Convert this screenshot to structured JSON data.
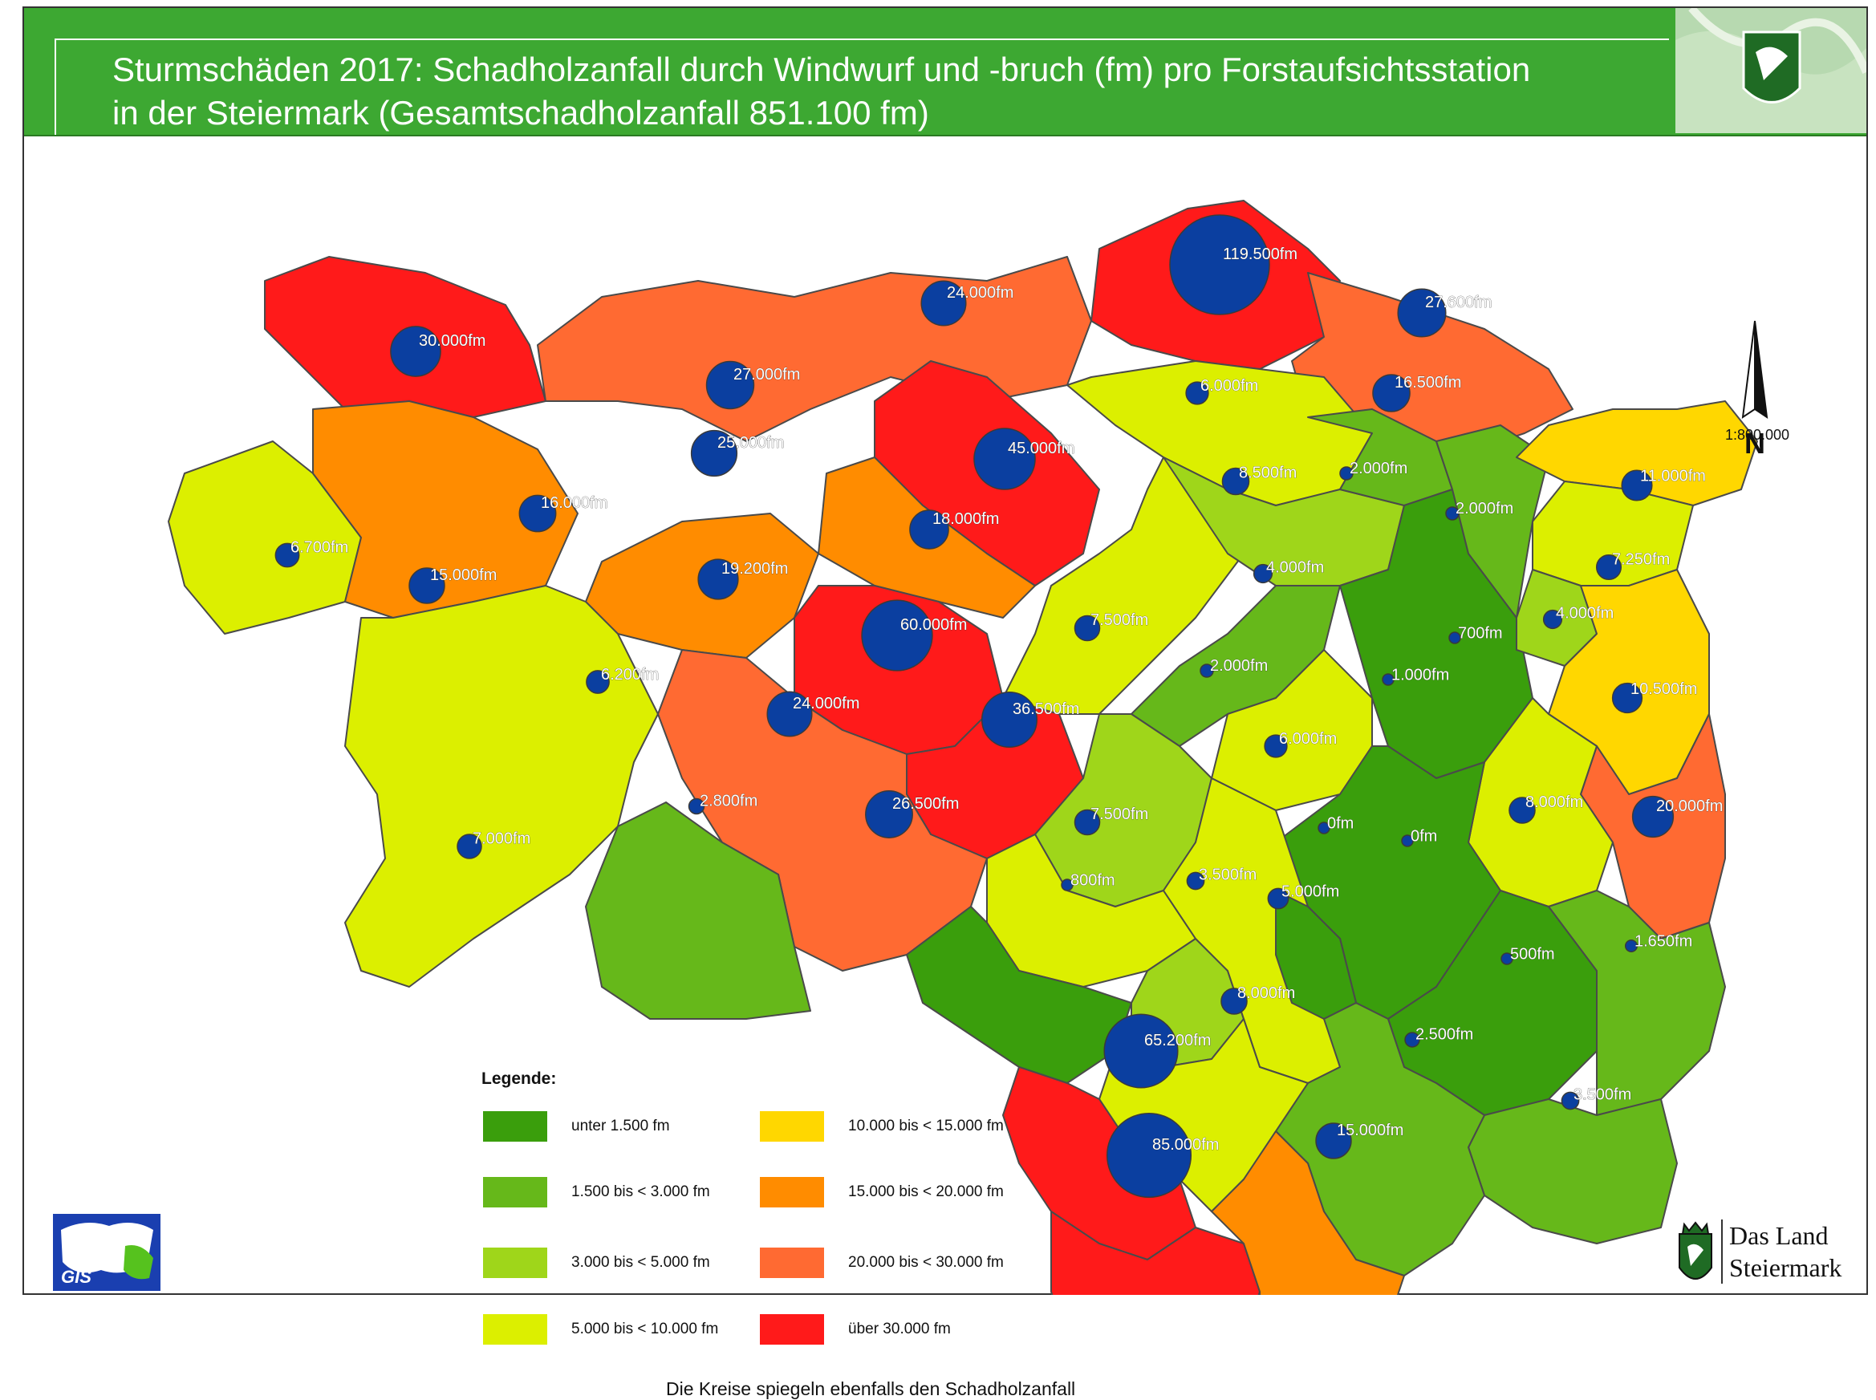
{
  "header": {
    "title_line1": "Sturmschäden 2017: Schadholzanfall durch Windwurf und -bruch (fm) pro Forstaufsichtsstation",
    "title_line2": "in der Steiermark (Gesamtschadholzanfall 851.100 fm)"
  },
  "north_arrow": {
    "letter": "N"
  },
  "scale": "1:800.000",
  "legend": {
    "title": "Legende:",
    "items": [
      {
        "label": "unter  1.500 fm",
        "color": "#3a9e0c"
      },
      {
        "label": "1.500 bis <  3.000 fm",
        "color": "#66b81a"
      },
      {
        "label": "3.000 bis <  5.000 fm",
        "color": "#9fd61a"
      },
      {
        "label": "5.000 bis < 10.000 fm",
        "color": "#dcef00"
      },
      {
        "label": "10.000 bis < 15.000 fm",
        "color": "#ffd700"
      },
      {
        "label": "15.000 bis < 20.000 fm",
        "color": "#ff8c00"
      },
      {
        "label": "20.000 bis < 30.000 fm",
        "color": "#ff6a32"
      },
      {
        "label": "über 30.000 fm",
        "color": "#ff1a1a"
      }
    ]
  },
  "circle_color": "#0b3fa0",
  "stations": [
    {
      "label": "30.000fm",
      "value": 30000
    },
    {
      "label": "24.000fm",
      "value": 24000
    },
    {
      "label": "119.500fm",
      "value": 119500
    },
    {
      "label": "27.600fm",
      "value": 27600
    },
    {
      "label": "27.000fm",
      "value": 27000
    },
    {
      "label": "25.000fm",
      "value": 25000
    },
    {
      "label": "45.000fm",
      "value": 45000
    },
    {
      "label": "6.000fm",
      "value": 6000
    },
    {
      "label": "16.500fm",
      "value": 16500
    },
    {
      "label": "16.000fm",
      "value": 16000
    },
    {
      "label": "8.500fm",
      "value": 8500
    },
    {
      "label": "2.000fm",
      "value": 2000
    },
    {
      "label": "11.000fm",
      "value": 11000
    },
    {
      "label": "6.700fm",
      "value": 6700
    },
    {
      "label": "18.000fm",
      "value": 18000
    },
    {
      "label": "2.000fm",
      "value": 2000
    },
    {
      "label": "15.000fm",
      "value": 15000
    },
    {
      "label": "19.200fm",
      "value": 19200
    },
    {
      "label": "4.000fm",
      "value": 4000
    },
    {
      "label": "7.250fm",
      "value": 7250
    },
    {
      "label": "7.500fm",
      "value": 7500
    },
    {
      "label": "60.000fm",
      "value": 60000
    },
    {
      "label": "4.000fm",
      "value": 4000
    },
    {
      "label": "700fm",
      "value": 700
    },
    {
      "label": "6.200fm",
      "value": 6200
    },
    {
      "label": "2.000fm",
      "value": 2000
    },
    {
      "label": "1.000fm",
      "value": 1000
    },
    {
      "label": "24.000fm",
      "value": 24000
    },
    {
      "label": "36.500fm",
      "value": 36500
    },
    {
      "label": "10.500fm",
      "value": 10500
    },
    {
      "label": "6.000fm",
      "value": 6000
    },
    {
      "label": "2.800fm",
      "value": 2800
    },
    {
      "label": "26.500fm",
      "value": 26500
    },
    {
      "label": "7.500fm",
      "value": 7500
    },
    {
      "label": "0fm",
      "value": 0
    },
    {
      "label": "0fm",
      "value": 0
    },
    {
      "label": "8.000fm",
      "value": 8000
    },
    {
      "label": "20.000fm",
      "value": 20000
    },
    {
      "label": "7.000fm",
      "value": 7000
    },
    {
      "label": "3.500fm",
      "value": 3500
    },
    {
      "label": "800fm",
      "value": 800
    },
    {
      "label": "5.000fm",
      "value": 5000
    },
    {
      "label": "500fm",
      "value": 500
    },
    {
      "label": "1.650fm",
      "value": 1650
    },
    {
      "label": "8.000fm",
      "value": 8000
    },
    {
      "label": "65.200fm",
      "value": 65200
    },
    {
      "label": "2.500fm",
      "value": 2500
    },
    {
      "label": "3.500fm",
      "value": 3500
    },
    {
      "label": "15.000fm",
      "value": 15000
    },
    {
      "label": "85.000fm",
      "value": 85000
    }
  ],
  "footnote": "Die Kreise spiegeln ebenfalls den Schadholzanfall",
  "gis_logo_text": "GIS",
  "land_logo": {
    "line1": "Das Land",
    "line2": "Steiermark"
  }
}
